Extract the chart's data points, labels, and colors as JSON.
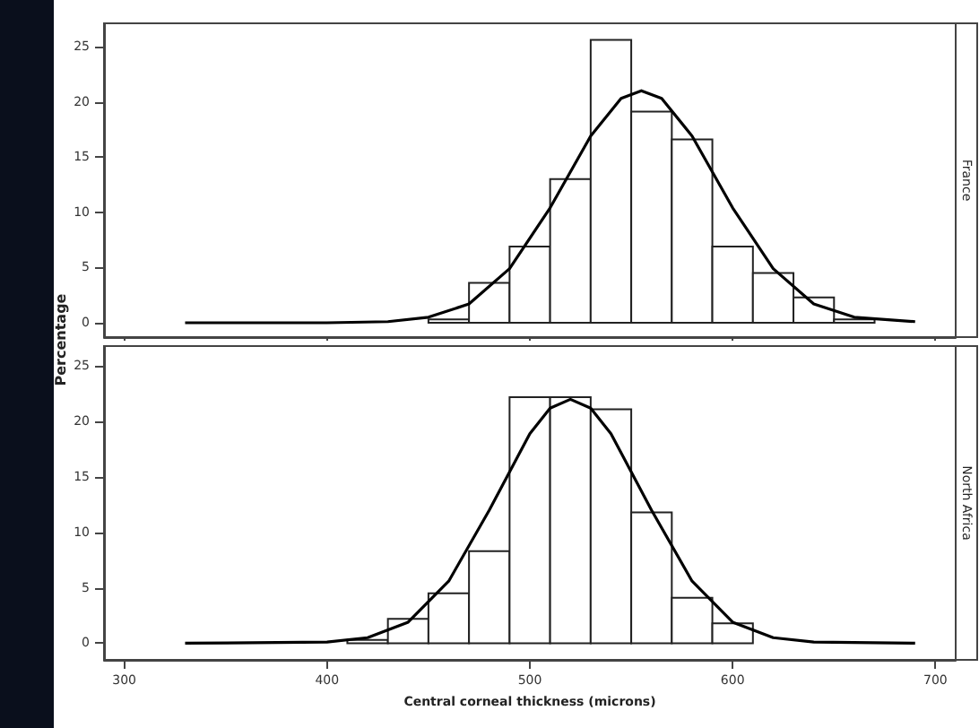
{
  "chart_data": [
    {
      "type": "histogram",
      "title": "France",
      "ylabel": "Percentage",
      "color": "#ffffff",
      "bins": [
        450,
        470,
        490,
        510,
        530,
        550,
        570,
        590,
        610,
        630,
        650,
        670,
        690
      ],
      "values": [
        0.3,
        3.6,
        6.9,
        13,
        25.6,
        19.1,
        16.6,
        6.9,
        4.5,
        2.3,
        0.3,
        null
      ],
      "xlim": [
        290,
        710
      ],
      "xticks": [
        300,
        400,
        500,
        600,
        700
      ],
      "ylim": [
        -1.3,
        27.1
      ],
      "yticks": [
        0,
        5,
        10,
        15,
        20,
        25
      ],
      "tick_labels": "y",
      "grid": false,
      "series": [
        {
          "type": "line",
          "color": "#000000",
          "x": [
            330,
            400,
            430,
            450,
            470,
            490,
            510,
            530,
            545,
            555,
            565,
            580,
            600,
            620,
            640,
            660,
            690
          ],
          "values": [
            0,
            0,
            0.1,
            0.5,
            1.7,
            4.9,
            10.4,
            16.9,
            20.3,
            21,
            20.3,
            16.9,
            10.4,
            4.9,
            1.7,
            0.5,
            0.1
          ]
        }
      ]
    },
    {
      "type": "histogram",
      "title": "North Africa",
      "xlabel": "Central corneal thickness (microns)",
      "color": "#ffffff",
      "bins": [
        410,
        430,
        450,
        470,
        490,
        510,
        530,
        550,
        570,
        590,
        610
      ],
      "values": [
        0.3,
        2.2,
        4.5,
        8.3,
        22.2,
        22.2,
        21.1,
        11.8,
        4.1,
        1.8
      ],
      "xlim": [
        290,
        710
      ],
      "xticks": [
        300,
        400,
        500,
        600,
        700
      ],
      "ylim": [
        -1.5,
        26.8
      ],
      "yticks": [
        0,
        5,
        10,
        15,
        20,
        25
      ],
      "grid": false,
      "series": [
        {
          "type": "line",
          "color": "#000000",
          "x": [
            330,
            400,
            420,
            440,
            460,
            480,
            500,
            510,
            520,
            530,
            540,
            560,
            580,
            600,
            620,
            640,
            690
          ],
          "values": [
            0,
            0.1,
            0.5,
            1.9,
            5.6,
            12,
            18.9,
            21.2,
            22,
            21.2,
            18.9,
            12,
            5.6,
            1.9,
            0.5,
            0.1,
            0
          ]
        }
      ]
    }
  ]
}
